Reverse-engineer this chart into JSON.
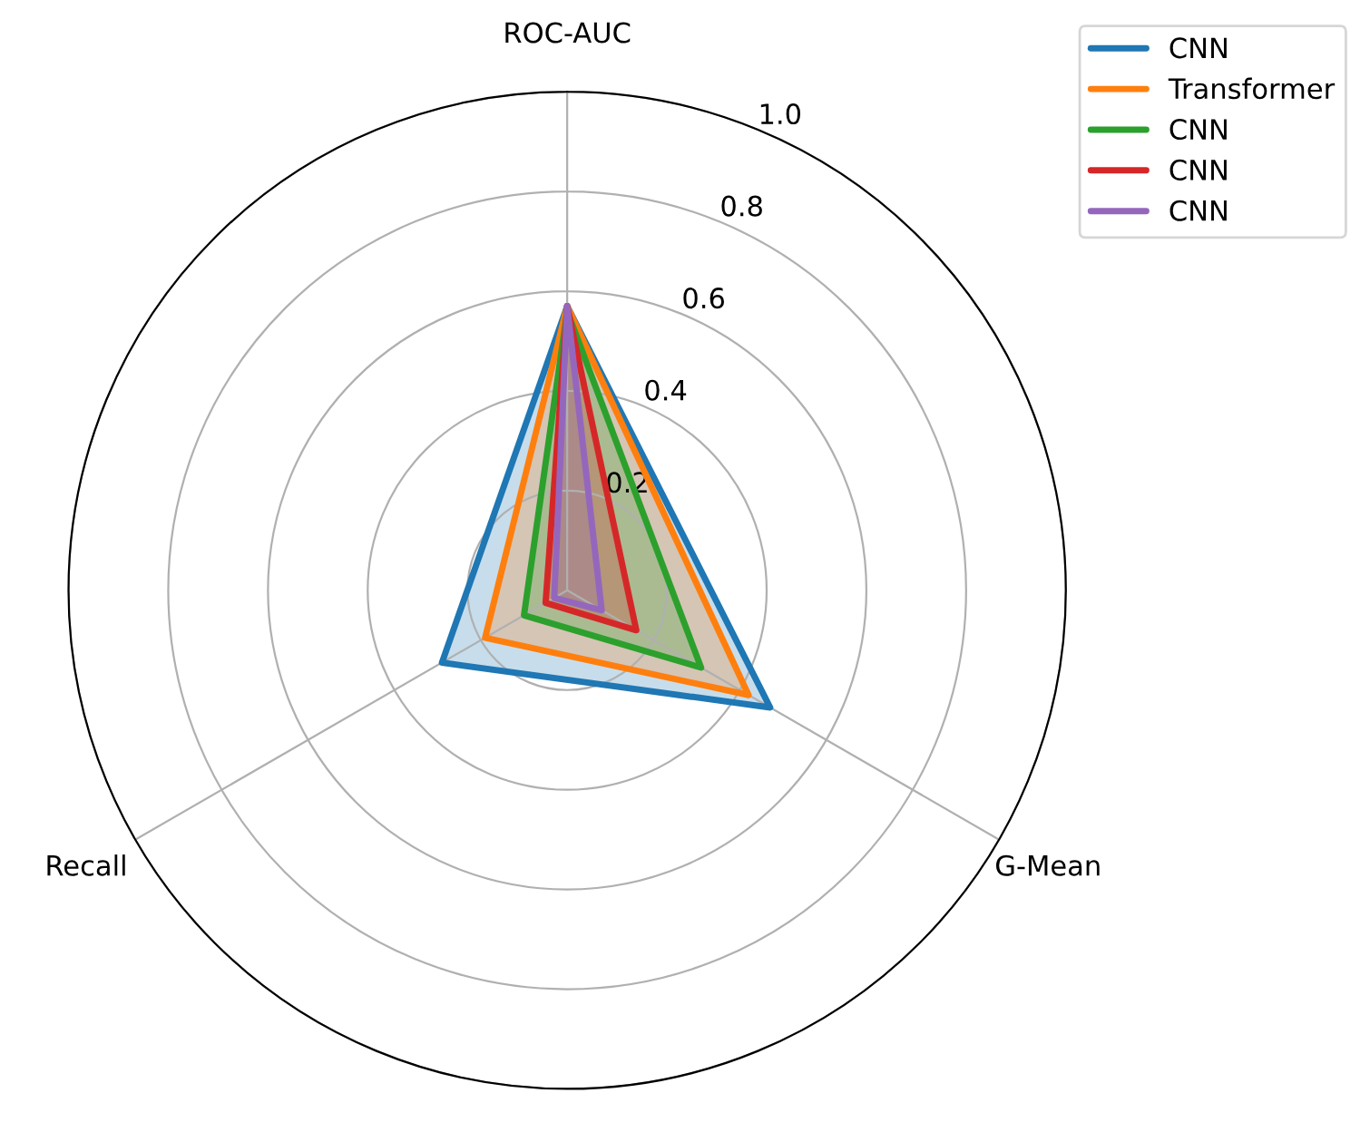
{
  "chart_data": {
    "type": "radar",
    "categories": [
      "ROC-AUC",
      "G-Mean",
      "Recall"
    ],
    "ylim": [
      0,
      1.0
    ],
    "yticks": [
      0.2,
      0.4,
      0.6,
      0.8,
      {
        "value": 1,
        "label": "1.0"
      }
    ],
    "grid": true,
    "legend": "top right",
    "series": [
      {
        "name": "CNN",
        "color": "#1f77b4",
        "values": [
          0.57,
          0.47,
          0.29
        ]
      },
      {
        "name": "Transformer",
        "color": "#ff7f0e",
        "values": [
          0.57,
          0.42,
          0.19
        ]
      },
      {
        "name": "CNN",
        "color": "#2ca02c",
        "values": [
          0.56,
          0.31,
          0.1
        ]
      },
      {
        "name": "CNN",
        "color": "#d62728",
        "values": [
          0.57,
          0.16,
          0.05
        ]
      },
      {
        "name": "CNN",
        "color": "#9467bd",
        "values": [
          0.57,
          0.08,
          0.03
        ]
      }
    ]
  }
}
